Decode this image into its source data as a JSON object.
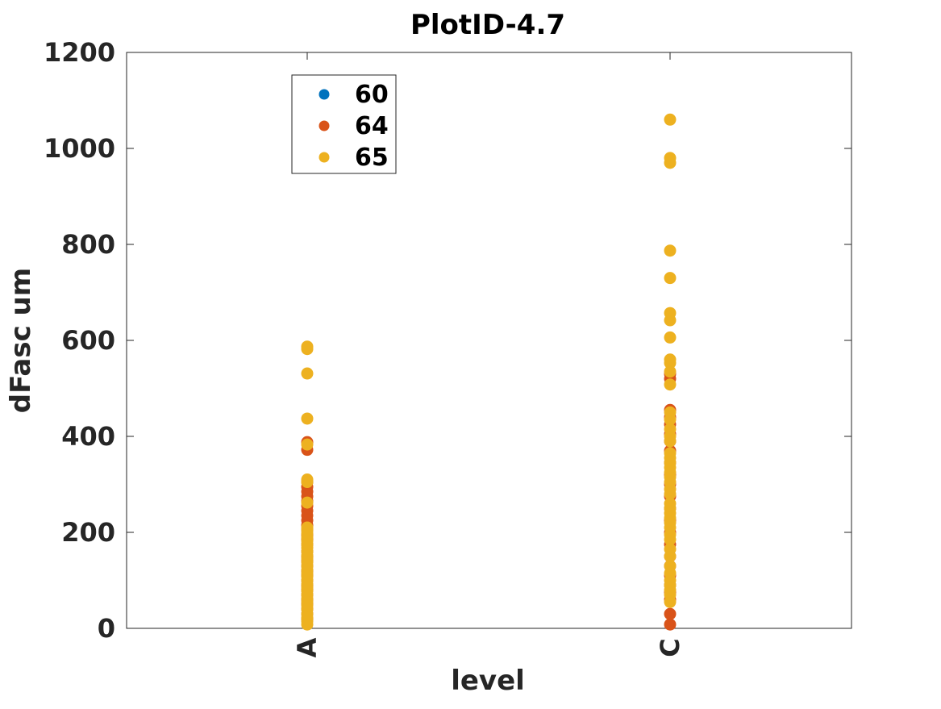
{
  "chart_data": {
    "type": "scatter",
    "title": "PlotID-4.7",
    "xlabel": "level",
    "ylabel": "dFasc um",
    "categories": [
      "A",
      "C"
    ],
    "ylim": [
      0,
      1200
    ],
    "yticks": [
      0,
      200,
      400,
      600,
      800,
      1000,
      1200
    ],
    "grid": false,
    "legend_position": "top-left",
    "series": [
      {
        "name": "60",
        "color": "#0072BD",
        "points": []
      },
      {
        "name": "64",
        "color": "#D95319",
        "points": [
          {
            "x": "A",
            "values": [
              388,
              372,
              305,
              295,
              285,
              275,
              265,
              255,
              245,
              235,
              225,
              215,
              205,
              195,
              185,
              175,
              160,
              150,
              140,
              130,
              120,
              110,
              100,
              90,
              80,
              70,
              60,
              50,
              40,
              30,
              20
            ]
          },
          {
            "x": "C",
            "values": [
              8,
              30,
              60,
              75,
              90,
              110,
              130,
              150,
              175,
              200,
              225,
              250,
              275,
              300,
              320,
              345,
              370,
              390,
              405,
              425,
              440,
              455,
              520,
              530
            ]
          }
        ]
      },
      {
        "name": "65",
        "color": "#EDB120",
        "points": [
          {
            "x": "A",
            "values": [
              587,
              582,
              531,
              437,
              383,
              310,
              305,
              262,
              210,
              205,
              198,
              190,
              182,
              175,
              168,
              160,
              152,
              145,
              138,
              130,
              122,
              115,
              108,
              100,
              92,
              85,
              78,
              70,
              62,
              55,
              48,
              40,
              30,
              22,
              15,
              8
            ]
          },
          {
            "x": "C",
            "values": [
              1060,
              980,
              970,
              787,
              730,
              657,
              642,
              606,
              560,
              553,
              535,
              508,
              450,
              435,
              415,
              400,
              390,
              365,
              355,
              345,
              335,
              325,
              315,
              305,
              290,
              280,
              260,
              250,
              240,
              230,
              220,
              210,
              195,
              185,
              165,
              150,
              130,
              115,
              100,
              90,
              80,
              70,
              55
            ]
          }
        ]
      }
    ]
  }
}
